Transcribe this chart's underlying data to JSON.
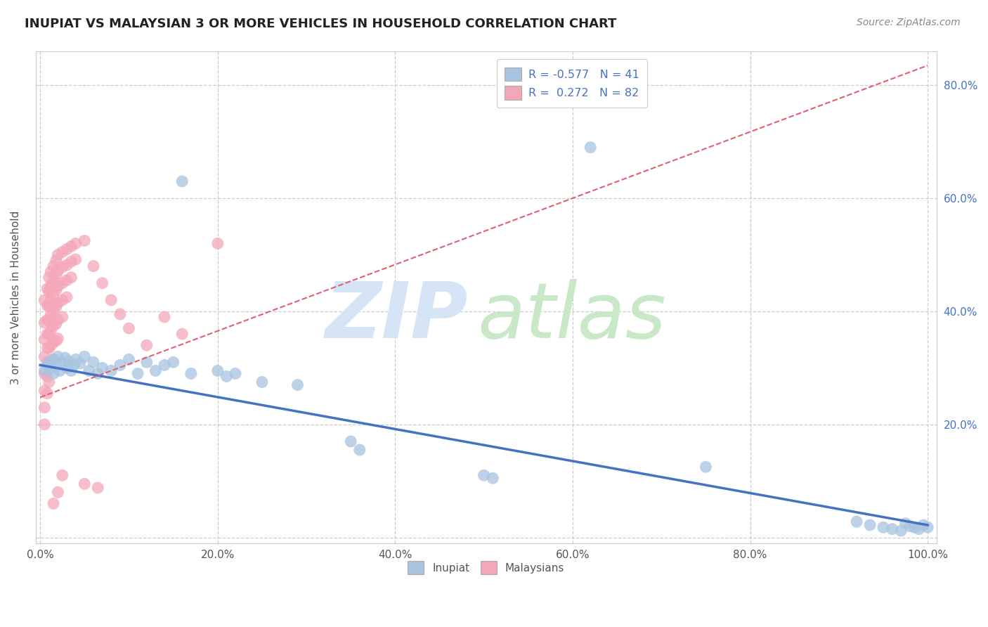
{
  "title": "INUPIAT VS MALAYSIAN 3 OR MORE VEHICLES IN HOUSEHOLD CORRELATION CHART",
  "source": "Source: ZipAtlas.com",
  "ylabel": "3 or more Vehicles in Household",
  "xlim": [
    -0.005,
    1.01
  ],
  "ylim": [
    -0.01,
    0.86
  ],
  "xticks": [
    0.0,
    0.2,
    0.4,
    0.6,
    0.8,
    1.0
  ],
  "xticklabels": [
    "0.0%",
    "20.0%",
    "40.0%",
    "60.0%",
    "80.0%",
    "100.0%"
  ],
  "yticks": [
    0.0,
    0.2,
    0.4,
    0.6,
    0.8
  ],
  "yticklabels_right": [
    "",
    "20.0%",
    "40.0%",
    "60.0%",
    "80.0%"
  ],
  "inupiat_color": "#a8c4e0",
  "malaysian_color": "#f4a7b9",
  "inupiat_line_color": "#4472c4",
  "malaysian_line_color": "#e06070",
  "legend_R_color": "#4472c4",
  "legend_N_color": "#333333",
  "background_color": "#ffffff",
  "grid_color": "#c8c8c8",
  "watermark_zip_color": "#d5e5f5",
  "watermark_atlas_color": "#c8e8c8",
  "inupiat_points": [
    [
      0.005,
      0.295
    ],
    [
      0.008,
      0.305
    ],
    [
      0.01,
      0.31
    ],
    [
      0.012,
      0.3
    ],
    [
      0.015,
      0.315
    ],
    [
      0.015,
      0.29
    ],
    [
      0.018,
      0.305
    ],
    [
      0.02,
      0.32
    ],
    [
      0.022,
      0.295
    ],
    [
      0.025,
      0.308
    ],
    [
      0.028,
      0.318
    ],
    [
      0.03,
      0.3
    ],
    [
      0.032,
      0.312
    ],
    [
      0.035,
      0.295
    ],
    [
      0.038,
      0.305
    ],
    [
      0.04,
      0.315
    ],
    [
      0.045,
      0.308
    ],
    [
      0.05,
      0.32
    ],
    [
      0.055,
      0.295
    ],
    [
      0.06,
      0.31
    ],
    [
      0.065,
      0.29
    ],
    [
      0.07,
      0.3
    ],
    [
      0.08,
      0.295
    ],
    [
      0.09,
      0.305
    ],
    [
      0.1,
      0.315
    ],
    [
      0.11,
      0.29
    ],
    [
      0.12,
      0.31
    ],
    [
      0.13,
      0.295
    ],
    [
      0.14,
      0.305
    ],
    [
      0.15,
      0.31
    ],
    [
      0.16,
      0.63
    ],
    [
      0.17,
      0.29
    ],
    [
      0.2,
      0.295
    ],
    [
      0.21,
      0.285
    ],
    [
      0.22,
      0.29
    ],
    [
      0.25,
      0.275
    ],
    [
      0.29,
      0.27
    ],
    [
      0.35,
      0.17
    ],
    [
      0.36,
      0.155
    ],
    [
      0.5,
      0.11
    ],
    [
      0.51,
      0.105
    ],
    [
      0.62,
      0.69
    ],
    [
      0.75,
      0.125
    ],
    [
      0.92,
      0.028
    ],
    [
      0.935,
      0.022
    ],
    [
      0.95,
      0.018
    ],
    [
      0.96,
      0.015
    ],
    [
      0.97,
      0.012
    ],
    [
      0.975,
      0.025
    ],
    [
      0.98,
      0.02
    ],
    [
      0.985,
      0.018
    ],
    [
      0.99,
      0.015
    ],
    [
      0.995,
      0.022
    ],
    [
      1.0,
      0.018
    ]
  ],
  "malaysian_points": [
    [
      0.005,
      0.42
    ],
    [
      0.005,
      0.38
    ],
    [
      0.005,
      0.35
    ],
    [
      0.005,
      0.32
    ],
    [
      0.005,
      0.29
    ],
    [
      0.005,
      0.26
    ],
    [
      0.005,
      0.23
    ],
    [
      0.005,
      0.2
    ],
    [
      0.008,
      0.44
    ],
    [
      0.008,
      0.41
    ],
    [
      0.008,
      0.385
    ],
    [
      0.008,
      0.36
    ],
    [
      0.008,
      0.335
    ],
    [
      0.008,
      0.31
    ],
    [
      0.008,
      0.285
    ],
    [
      0.008,
      0.255
    ],
    [
      0.01,
      0.46
    ],
    [
      0.01,
      0.435
    ],
    [
      0.01,
      0.41
    ],
    [
      0.01,
      0.385
    ],
    [
      0.01,
      0.36
    ],
    [
      0.01,
      0.335
    ],
    [
      0.01,
      0.305
    ],
    [
      0.01,
      0.275
    ],
    [
      0.012,
      0.47
    ],
    [
      0.012,
      0.445
    ],
    [
      0.012,
      0.42
    ],
    [
      0.012,
      0.395
    ],
    [
      0.012,
      0.365
    ],
    [
      0.012,
      0.34
    ],
    [
      0.012,
      0.31
    ],
    [
      0.015,
      0.48
    ],
    [
      0.015,
      0.455
    ],
    [
      0.015,
      0.43
    ],
    [
      0.015,
      0.4
    ],
    [
      0.015,
      0.375
    ],
    [
      0.015,
      0.345
    ],
    [
      0.015,
      0.315
    ],
    [
      0.018,
      0.49
    ],
    [
      0.018,
      0.465
    ],
    [
      0.018,
      0.438
    ],
    [
      0.018,
      0.408
    ],
    [
      0.018,
      0.378
    ],
    [
      0.018,
      0.348
    ],
    [
      0.02,
      0.5
    ],
    [
      0.02,
      0.472
    ],
    [
      0.02,
      0.445
    ],
    [
      0.02,
      0.415
    ],
    [
      0.02,
      0.385
    ],
    [
      0.02,
      0.352
    ],
    [
      0.025,
      0.505
    ],
    [
      0.025,
      0.478
    ],
    [
      0.025,
      0.45
    ],
    [
      0.025,
      0.42
    ],
    [
      0.025,
      0.39
    ],
    [
      0.03,
      0.51
    ],
    [
      0.03,
      0.482
    ],
    [
      0.03,
      0.455
    ],
    [
      0.03,
      0.425
    ],
    [
      0.035,
      0.515
    ],
    [
      0.035,
      0.488
    ],
    [
      0.035,
      0.46
    ],
    [
      0.04,
      0.52
    ],
    [
      0.04,
      0.492
    ],
    [
      0.05,
      0.525
    ],
    [
      0.06,
      0.48
    ],
    [
      0.07,
      0.45
    ],
    [
      0.08,
      0.42
    ],
    [
      0.09,
      0.395
    ],
    [
      0.1,
      0.37
    ],
    [
      0.12,
      0.34
    ],
    [
      0.14,
      0.39
    ],
    [
      0.16,
      0.36
    ],
    [
      0.2,
      0.52
    ],
    [
      0.015,
      0.06
    ],
    [
      0.02,
      0.08
    ],
    [
      0.05,
      0.095
    ],
    [
      0.065,
      0.088
    ],
    [
      0.025,
      0.11
    ]
  ],
  "inupiat_line": {
    "x0": 0.0,
    "x1": 1.0,
    "y0": 0.305,
    "y1": 0.022
  },
  "malaysian_line": {
    "x0": 0.0,
    "x1": 1.0,
    "y0": 0.248,
    "y1": 0.835
  }
}
